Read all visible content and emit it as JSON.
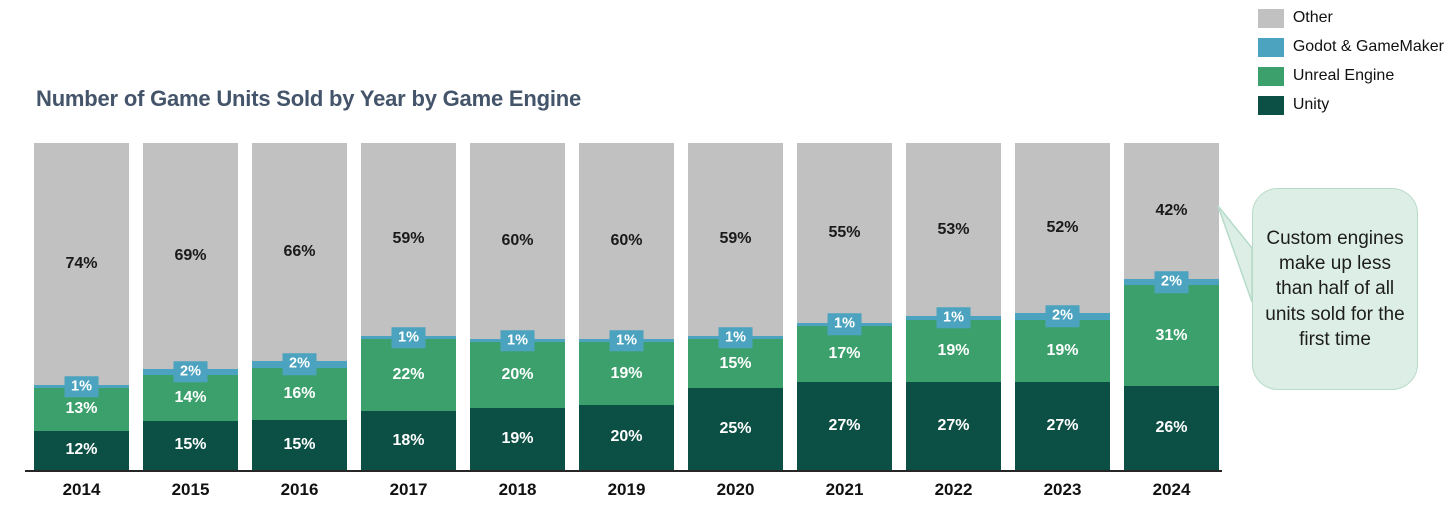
{
  "title": "Number of Game Units Sold by Year by Game Engine",
  "legend": {
    "items": [
      {
        "label": "Other",
        "color": "#c1c1c1"
      },
      {
        "label": "Godot & GameMaker",
        "color": "#4ba3c0"
      },
      {
        "label": "Unreal Engine",
        "color": "#3ba06c"
      },
      {
        "label": "Unity",
        "color": "#0c4f44"
      }
    ]
  },
  "callout": {
    "text": "Custom engines make up less than half of all units sold for the first time",
    "fill_color": "#ddeee6",
    "border_color": "#b7dbc9"
  },
  "chart_data": {
    "type": "bar",
    "stacked": true,
    "percent_stacked": true,
    "title": "Number of Game Units Sold by Year by Game Engine",
    "xlabel": "",
    "ylabel": "",
    "ylim": [
      0,
      100
    ],
    "grid": false,
    "legend_position": "top-right",
    "value_suffix": "%",
    "categories": [
      "2014",
      "2015",
      "2016",
      "2017",
      "2018",
      "2019",
      "2020",
      "2021",
      "2022",
      "2023",
      "2024"
    ],
    "series": [
      {
        "name": "Unity",
        "color": "#0c4f44",
        "label_color": "#ffffff",
        "values": [
          12,
          15,
          15,
          18,
          19,
          20,
          25,
          27,
          27,
          27,
          26
        ]
      },
      {
        "name": "Unreal Engine",
        "color": "#3ba06c",
        "label_color": "#ffffff",
        "values": [
          13,
          14,
          16,
          22,
          20,
          19,
          15,
          17,
          19,
          19,
          31
        ]
      },
      {
        "name": "Godot & GameMaker",
        "color": "#4ba3c0",
        "label_color": "#ffffff",
        "values": [
          1,
          2,
          2,
          1,
          1,
          1,
          1,
          1,
          1,
          2,
          2
        ]
      },
      {
        "name": "Other",
        "color": "#c1c1c1",
        "label_color": "#1a1a1a",
        "values": [
          74,
          69,
          66,
          59,
          60,
          60,
          59,
          55,
          53,
          52,
          42
        ]
      }
    ]
  }
}
